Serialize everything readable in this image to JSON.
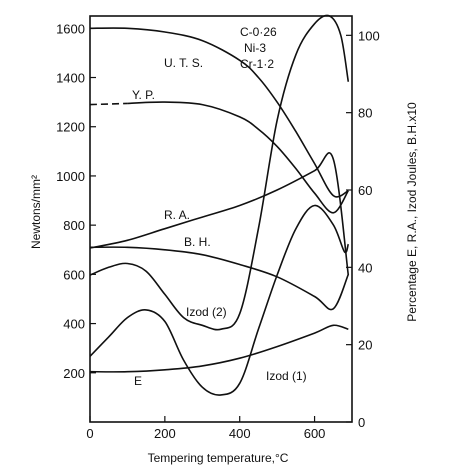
{
  "chart_data": {
    "type": "line",
    "title": "",
    "xlabel": "Tempering temperature,°C",
    "ylabel_left": "Newtons/mm²",
    "ylabel_right": "Percentage E, R.A., Izod Joules, B.H.x10",
    "xlim": [
      0,
      700
    ],
    "ylim_left": [
      0,
      1650
    ],
    "ylim_right": [
      0,
      105
    ],
    "x_ticks": [
      "0",
      "200",
      "400",
      "600"
    ],
    "y_left_ticks": [
      "200",
      "400",
      "600",
      "800",
      "1000",
      "1200",
      "1400",
      "1600"
    ],
    "y_right_ticks": [
      "0",
      "20",
      "40",
      "60",
      "80",
      "100"
    ],
    "annotation": [
      "C-0·26",
      "Ni-3",
      "Cr-1·2"
    ],
    "grid": false,
    "series": [
      {
        "name": "U.T.S.",
        "axis": "left",
        "x": [
          0,
          100,
          200,
          300,
          400,
          450,
          500,
          550,
          600,
          650,
          690
        ],
        "y": [
          1600,
          1600,
          1585,
          1550,
          1470,
          1400,
          1300,
          1180,
          1050,
          920,
          940
        ]
      },
      {
        "name": "Y.P.",
        "axis": "left",
        "dashed_until": 100,
        "x": [
          0,
          100,
          200,
          300,
          400,
          450,
          500,
          550,
          600,
          650,
          690
        ],
        "y": [
          1290,
          1295,
          1300,
          1290,
          1240,
          1190,
          1120,
          1030,
          930,
          850,
          940
        ]
      },
      {
        "name": "R.A.",
        "axis": "right",
        "x": [
          0,
          100,
          200,
          300,
          400,
          500,
          600,
          650,
          690
        ],
        "y": [
          45,
          47,
          50,
          53,
          56,
          60,
          65,
          68,
          38
        ]
      },
      {
        "name": "B.H.",
        "axis": "left",
        "x": [
          0,
          100,
          200,
          300,
          400,
          500,
          600,
          650,
          690
        ],
        "y": [
          710,
          710,
          700,
          680,
          640,
          590,
          510,
          460,
          600
        ]
      },
      {
        "name": "Izod (2)",
        "axis": "right",
        "x": [
          0,
          50,
          100,
          150,
          200,
          250,
          300,
          350,
          400,
          450,
          500,
          550,
          600,
          640,
          670,
          690
        ],
        "y": [
          38,
          40,
          41,
          39,
          33,
          27,
          25,
          24,
          28,
          50,
          78,
          95,
          103,
          105,
          100,
          88
        ]
      },
      {
        "name": "Izod (1)",
        "axis": "right",
        "x": [
          0,
          50,
          100,
          150,
          200,
          250,
          300,
          350,
          400,
          450,
          500,
          550,
          600,
          650,
          680,
          690
        ],
        "y": [
          17,
          22,
          27,
          29,
          26,
          16,
          9,
          7,
          10,
          24,
          38,
          50,
          56,
          51,
          44,
          46
        ]
      },
      {
        "name": "E",
        "axis": "right",
        "x": [
          0,
          100,
          200,
          300,
          400,
          500,
          600,
          650,
          690
        ],
        "y": [
          13,
          13,
          13.5,
          14.5,
          16.5,
          19.5,
          23,
          25,
          24
        ]
      }
    ],
    "curve_labels": [
      "U. T. S.",
      "Y. P.",
      "R. A.",
      "B. H.",
      "Izod (2)",
      "Izod (1)",
      "E"
    ]
  }
}
